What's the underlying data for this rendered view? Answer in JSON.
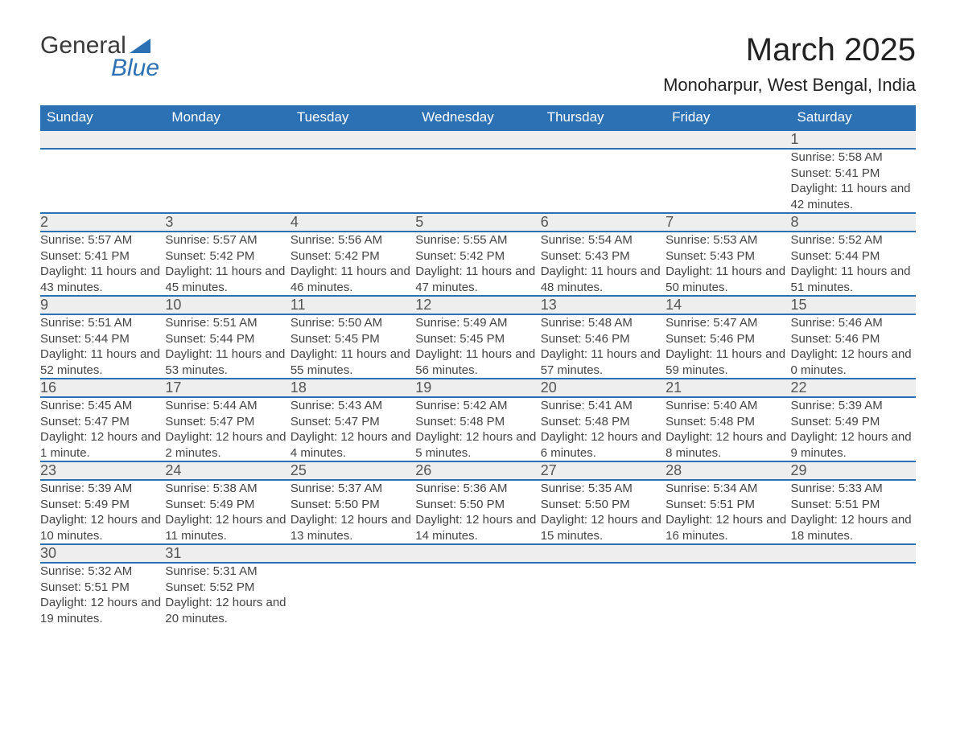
{
  "logo": {
    "text_top": "General",
    "text_bottom": "Blue"
  },
  "title": "March 2025",
  "location": "Monoharpur, West Bengal, India",
  "colors": {
    "header_bg": "#2d71b5",
    "header_text": "#ffffff",
    "daynum_bg": "#eeeeee",
    "border": "#2d71b5",
    "body_text": "#444444"
  },
  "day_headers": [
    "Sunday",
    "Monday",
    "Tuesday",
    "Wednesday",
    "Thursday",
    "Friday",
    "Saturday"
  ],
  "weeks": [
    [
      null,
      null,
      null,
      null,
      null,
      null,
      {
        "n": "1",
        "sr": "Sunrise: 5:58 AM",
        "ss": "Sunset: 5:41 PM",
        "dl": "Daylight: 11 hours and 42 minutes."
      }
    ],
    [
      {
        "n": "2",
        "sr": "Sunrise: 5:57 AM",
        "ss": "Sunset: 5:41 PM",
        "dl": "Daylight: 11 hours and 43 minutes."
      },
      {
        "n": "3",
        "sr": "Sunrise: 5:57 AM",
        "ss": "Sunset: 5:42 PM",
        "dl": "Daylight: 11 hours and 45 minutes."
      },
      {
        "n": "4",
        "sr": "Sunrise: 5:56 AM",
        "ss": "Sunset: 5:42 PM",
        "dl": "Daylight: 11 hours and 46 minutes."
      },
      {
        "n": "5",
        "sr": "Sunrise: 5:55 AM",
        "ss": "Sunset: 5:42 PM",
        "dl": "Daylight: 11 hours and 47 minutes."
      },
      {
        "n": "6",
        "sr": "Sunrise: 5:54 AM",
        "ss": "Sunset: 5:43 PM",
        "dl": "Daylight: 11 hours and 48 minutes."
      },
      {
        "n": "7",
        "sr": "Sunrise: 5:53 AM",
        "ss": "Sunset: 5:43 PM",
        "dl": "Daylight: 11 hours and 50 minutes."
      },
      {
        "n": "8",
        "sr": "Sunrise: 5:52 AM",
        "ss": "Sunset: 5:44 PM",
        "dl": "Daylight: 11 hours and 51 minutes."
      }
    ],
    [
      {
        "n": "9",
        "sr": "Sunrise: 5:51 AM",
        "ss": "Sunset: 5:44 PM",
        "dl": "Daylight: 11 hours and 52 minutes."
      },
      {
        "n": "10",
        "sr": "Sunrise: 5:51 AM",
        "ss": "Sunset: 5:44 PM",
        "dl": "Daylight: 11 hours and 53 minutes."
      },
      {
        "n": "11",
        "sr": "Sunrise: 5:50 AM",
        "ss": "Sunset: 5:45 PM",
        "dl": "Daylight: 11 hours and 55 minutes."
      },
      {
        "n": "12",
        "sr": "Sunrise: 5:49 AM",
        "ss": "Sunset: 5:45 PM",
        "dl": "Daylight: 11 hours and 56 minutes."
      },
      {
        "n": "13",
        "sr": "Sunrise: 5:48 AM",
        "ss": "Sunset: 5:46 PM",
        "dl": "Daylight: 11 hours and 57 minutes."
      },
      {
        "n": "14",
        "sr": "Sunrise: 5:47 AM",
        "ss": "Sunset: 5:46 PM",
        "dl": "Daylight: 11 hours and 59 minutes."
      },
      {
        "n": "15",
        "sr": "Sunrise: 5:46 AM",
        "ss": "Sunset: 5:46 PM",
        "dl": "Daylight: 12 hours and 0 minutes."
      }
    ],
    [
      {
        "n": "16",
        "sr": "Sunrise: 5:45 AM",
        "ss": "Sunset: 5:47 PM",
        "dl": "Daylight: 12 hours and 1 minute."
      },
      {
        "n": "17",
        "sr": "Sunrise: 5:44 AM",
        "ss": "Sunset: 5:47 PM",
        "dl": "Daylight: 12 hours and 2 minutes."
      },
      {
        "n": "18",
        "sr": "Sunrise: 5:43 AM",
        "ss": "Sunset: 5:47 PM",
        "dl": "Daylight: 12 hours and 4 minutes."
      },
      {
        "n": "19",
        "sr": "Sunrise: 5:42 AM",
        "ss": "Sunset: 5:48 PM",
        "dl": "Daylight: 12 hours and 5 minutes."
      },
      {
        "n": "20",
        "sr": "Sunrise: 5:41 AM",
        "ss": "Sunset: 5:48 PM",
        "dl": "Daylight: 12 hours and 6 minutes."
      },
      {
        "n": "21",
        "sr": "Sunrise: 5:40 AM",
        "ss": "Sunset: 5:48 PM",
        "dl": "Daylight: 12 hours and 8 minutes."
      },
      {
        "n": "22",
        "sr": "Sunrise: 5:39 AM",
        "ss": "Sunset: 5:49 PM",
        "dl": "Daylight: 12 hours and 9 minutes."
      }
    ],
    [
      {
        "n": "23",
        "sr": "Sunrise: 5:39 AM",
        "ss": "Sunset: 5:49 PM",
        "dl": "Daylight: 12 hours and 10 minutes."
      },
      {
        "n": "24",
        "sr": "Sunrise: 5:38 AM",
        "ss": "Sunset: 5:49 PM",
        "dl": "Daylight: 12 hours and 11 minutes."
      },
      {
        "n": "25",
        "sr": "Sunrise: 5:37 AM",
        "ss": "Sunset: 5:50 PM",
        "dl": "Daylight: 12 hours and 13 minutes."
      },
      {
        "n": "26",
        "sr": "Sunrise: 5:36 AM",
        "ss": "Sunset: 5:50 PM",
        "dl": "Daylight: 12 hours and 14 minutes."
      },
      {
        "n": "27",
        "sr": "Sunrise: 5:35 AM",
        "ss": "Sunset: 5:50 PM",
        "dl": "Daylight: 12 hours and 15 minutes."
      },
      {
        "n": "28",
        "sr": "Sunrise: 5:34 AM",
        "ss": "Sunset: 5:51 PM",
        "dl": "Daylight: 12 hours and 16 minutes."
      },
      {
        "n": "29",
        "sr": "Sunrise: 5:33 AM",
        "ss": "Sunset: 5:51 PM",
        "dl": "Daylight: 12 hours and 18 minutes."
      }
    ],
    [
      {
        "n": "30",
        "sr": "Sunrise: 5:32 AM",
        "ss": "Sunset: 5:51 PM",
        "dl": "Daylight: 12 hours and 19 minutes."
      },
      {
        "n": "31",
        "sr": "Sunrise: 5:31 AM",
        "ss": "Sunset: 5:52 PM",
        "dl": "Daylight: 12 hours and 20 minutes."
      },
      null,
      null,
      null,
      null,
      null
    ]
  ]
}
